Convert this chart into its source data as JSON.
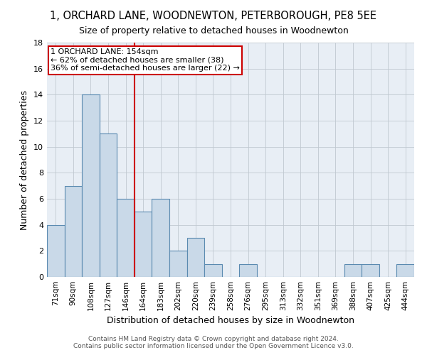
{
  "title_line1": "1, ORCHARD LANE, WOODNEWTON, PETERBOROUGH, PE8 5EE",
  "title_line2": "Size of property relative to detached houses in Woodnewton",
  "xlabel": "Distribution of detached houses by size in Woodnewton",
  "ylabel": "Number of detached properties",
  "categories": [
    "71sqm",
    "90sqm",
    "108sqm",
    "127sqm",
    "146sqm",
    "164sqm",
    "183sqm",
    "202sqm",
    "220sqm",
    "239sqm",
    "258sqm",
    "276sqm",
    "295sqm",
    "313sqm",
    "332sqm",
    "351sqm",
    "369sqm",
    "388sqm",
    "407sqm",
    "425sqm",
    "444sqm"
  ],
  "values": [
    4,
    7,
    14,
    11,
    6,
    5,
    6,
    2,
    3,
    1,
    0,
    1,
    0,
    0,
    0,
    0,
    0,
    1,
    1,
    0,
    1
  ],
  "bar_color": "#c9d9e8",
  "bar_edge_color": "#5a8ab0",
  "ylim": [
    0,
    18
  ],
  "yticks": [
    0,
    2,
    4,
    6,
    8,
    10,
    12,
    14,
    16,
    18
  ],
  "vline_x": 4.5,
  "vline_color": "#cc0000",
  "annotation_text": "1 ORCHARD LANE: 154sqm\n← 62% of detached houses are smaller (38)\n36% of semi-detached houses are larger (22) →",
  "annotation_box_color": "#cc0000",
  "footer_line1": "Contains HM Land Registry data © Crown copyright and database right 2024.",
  "footer_line2": "Contains public sector information licensed under the Open Government Licence v3.0.",
  "background_color": "#e8eef5",
  "grid_color": "#c0c8d0",
  "title1_fontsize": 10.5,
  "title2_fontsize": 9,
  "ylabel_fontsize": 9,
  "xlabel_fontsize": 9,
  "tick_fontsize": 7.5,
  "annotation_fontsize": 8,
  "footer_fontsize": 6.5
}
